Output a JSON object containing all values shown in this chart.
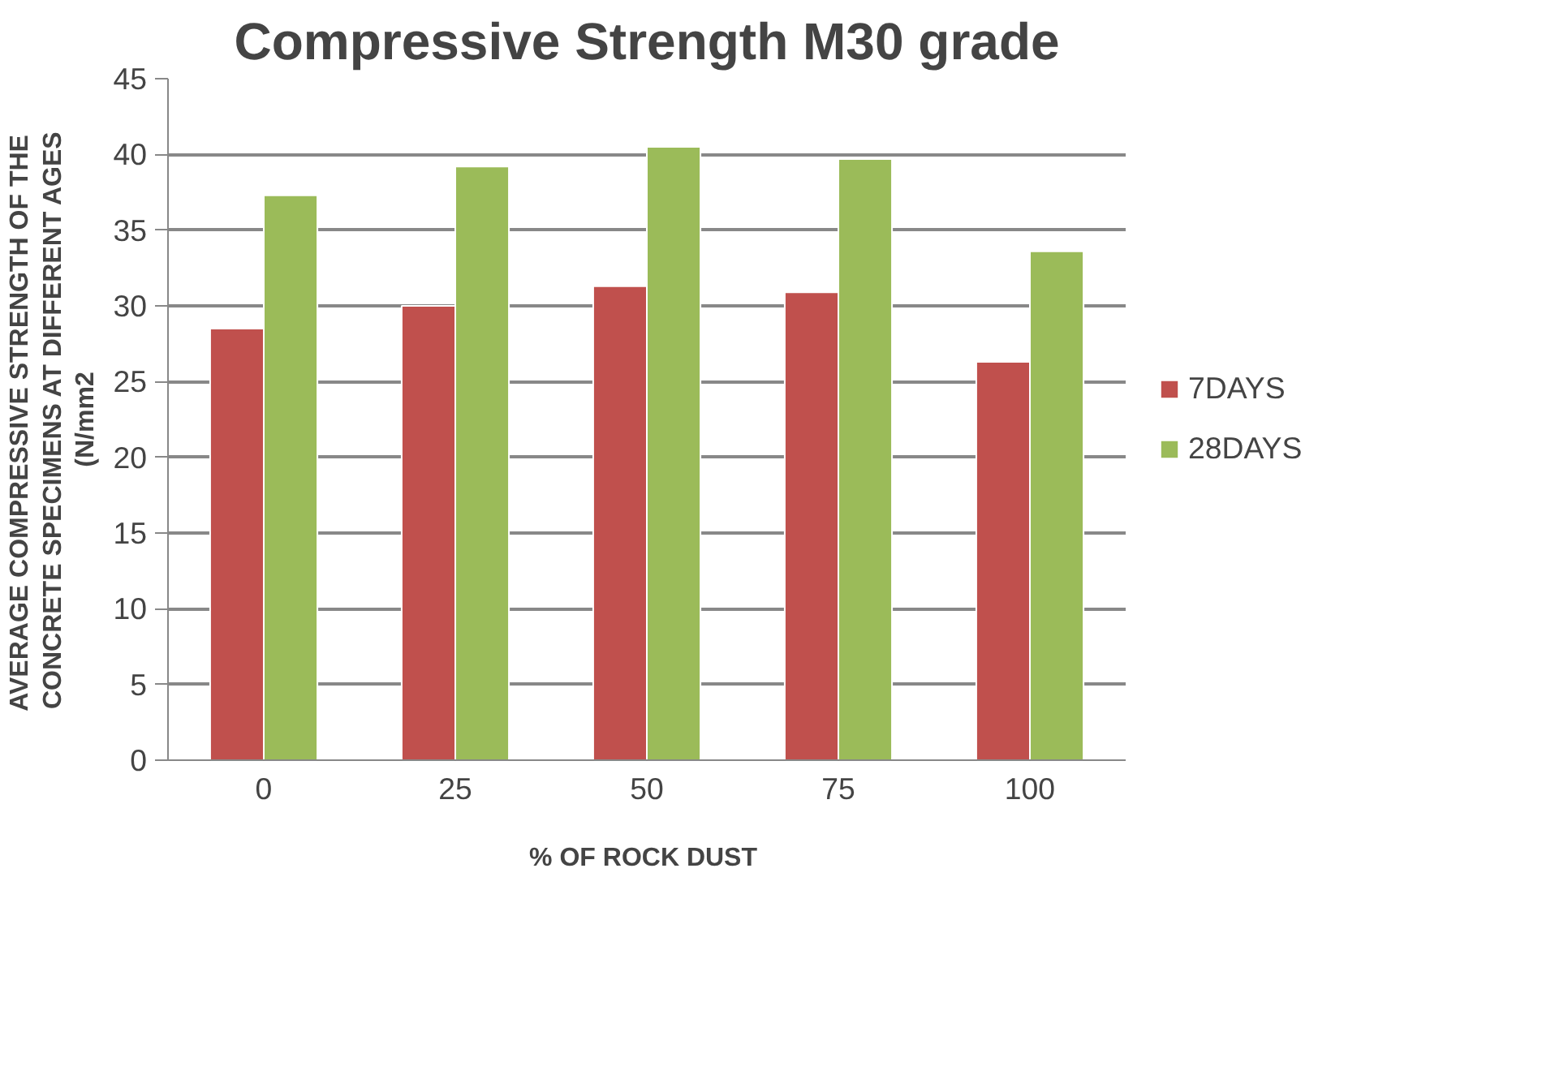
{
  "chart_data": {
    "type": "bar",
    "title": "Compressive Strength M30 grade",
    "xlabel": "%  OF ROCK DUST",
    "ylabel": "AVERAGE COMPRESSIVE  STRENGTH OF THE\nCONCRETE SPECIMENS AT DIFFERENT AGES\n(N/mm2",
    "categories": [
      "0",
      "25",
      "50",
      "75",
      "100"
    ],
    "series": [
      {
        "name": "7DAYS",
        "color": "#c0504d",
        "values": [
          28.5,
          30.0,
          31.3,
          30.9,
          26.3
        ]
      },
      {
        "name": "28DAYS",
        "color": "#9bbb59",
        "values": [
          37.3,
          39.2,
          40.5,
          39.7,
          33.6
        ]
      }
    ],
    "ylim": [
      0,
      45
    ],
    "yticks": [
      0,
      5,
      10,
      15,
      20,
      25,
      30,
      35,
      40,
      45
    ],
    "grid": "y",
    "legend": "right"
  }
}
